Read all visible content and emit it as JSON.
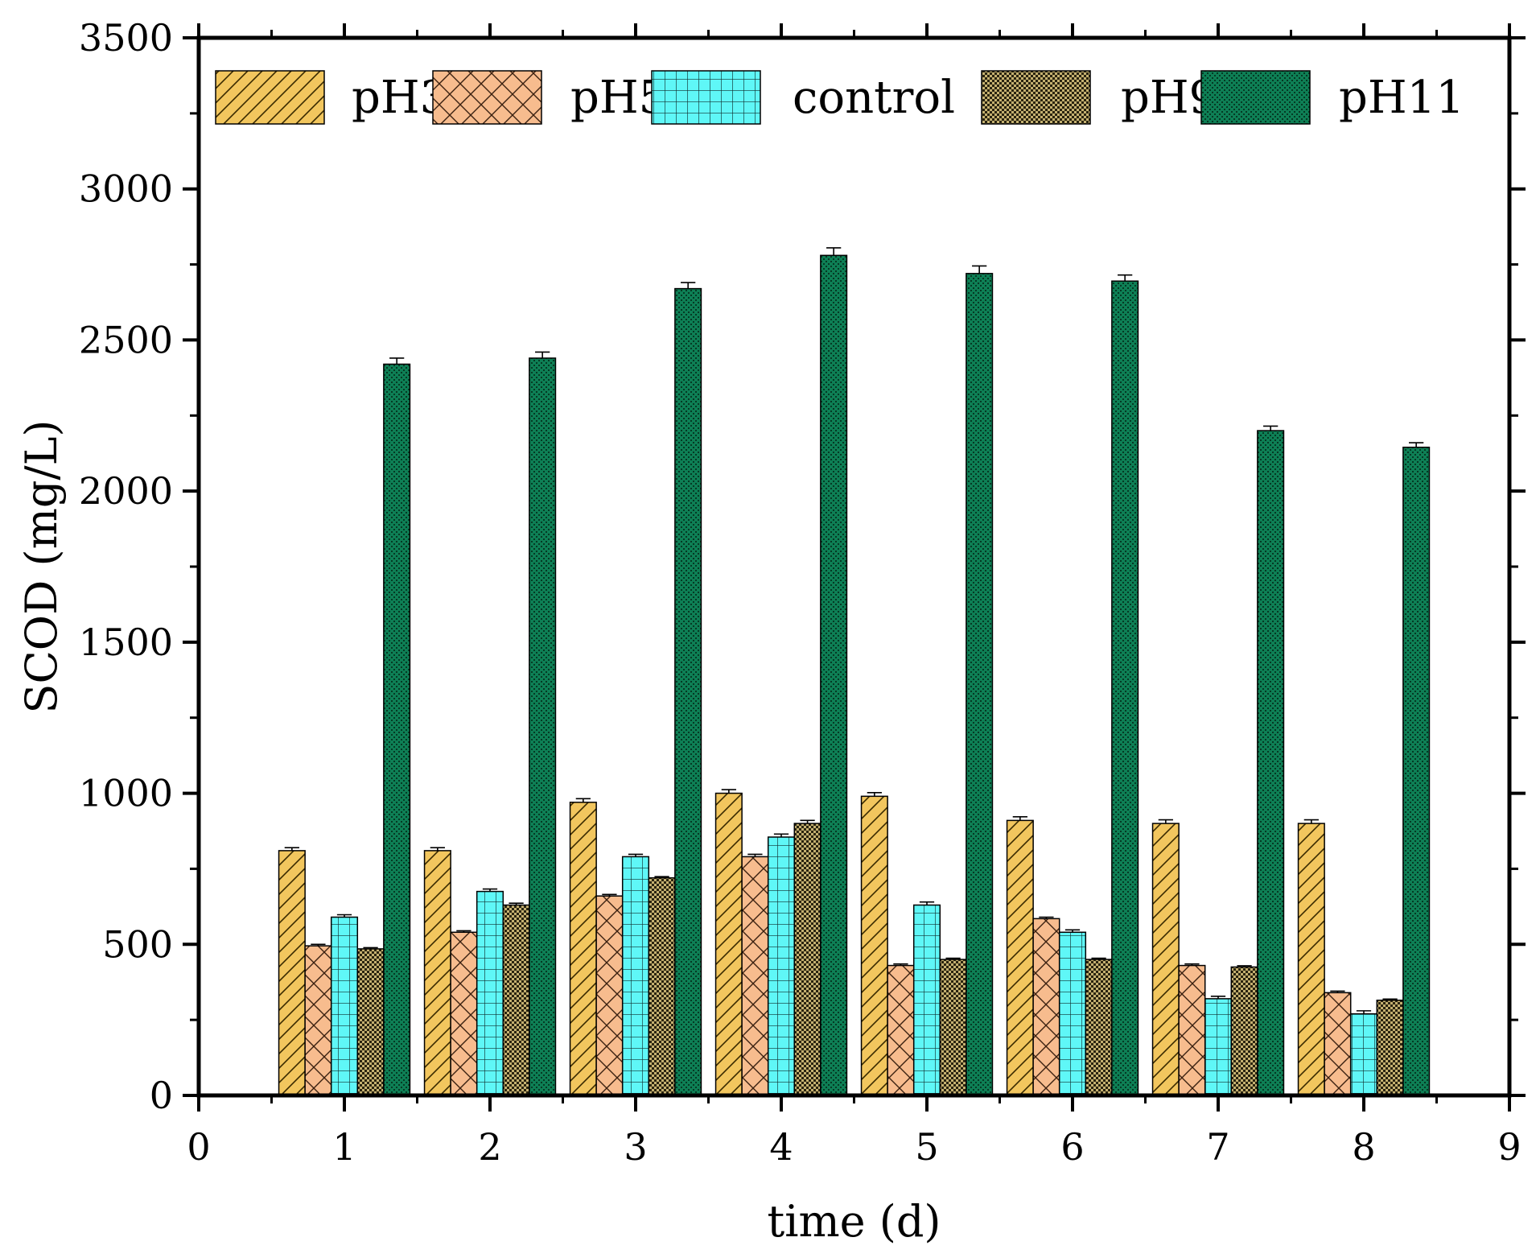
{
  "chart_data": {
    "type": "bar",
    "title": "",
    "xlabel": "time (d)",
    "ylabel": "SCOD (mg/L)",
    "xlim": [
      0,
      9
    ],
    "ylim": [
      0,
      3500
    ],
    "xticks": [
      "0",
      "1",
      "2",
      "3",
      "4",
      "5",
      "6",
      "7",
      "8",
      "9"
    ],
    "yticks": [
      "0",
      "500",
      "1000",
      "1500",
      "2000",
      "2500",
      "3000",
      "3500"
    ],
    "categories": [
      "1",
      "2",
      "3",
      "4",
      "5",
      "6",
      "7",
      "8"
    ],
    "legend_position": "top",
    "grid": false,
    "series": [
      {
        "name": "pH3",
        "color": "#F2C65E",
        "pattern": "diagonal-hatch",
        "values": [
          810,
          810,
          970,
          1000,
          990,
          910,
          900,
          900
        ],
        "errors": [
          10,
          10,
          12,
          12,
          12,
          12,
          12,
          12
        ]
      },
      {
        "name": "pH5",
        "color": "#F7BC8E",
        "pattern": "crosshatch",
        "values": [
          495,
          540,
          660,
          790,
          430,
          585,
          430,
          340
        ],
        "errors": [
          5,
          5,
          5,
          8,
          5,
          5,
          5,
          5
        ]
      },
      {
        "name": "control",
        "color": "#5FF7F7",
        "pattern": "grid",
        "values": [
          590,
          675,
          790,
          855,
          630,
          540,
          320,
          270
        ],
        "errors": [
          8,
          8,
          8,
          10,
          10,
          8,
          8,
          10
        ]
      },
      {
        "name": "pH9",
        "color": "#8A7A55",
        "pattern": "dense-dots",
        "values": [
          485,
          630,
          720,
          900,
          450,
          450,
          425,
          315
        ],
        "errors": [
          4,
          6,
          4,
          10,
          4,
          4,
          4,
          4
        ]
      },
      {
        "name": "pH11",
        "color": "#0E7F55",
        "pattern": "fine-dots",
        "values": [
          2420,
          2440,
          2670,
          2780,
          2720,
          2695,
          2200,
          2145
        ],
        "errors": [
          20,
          20,
          20,
          25,
          25,
          20,
          15,
          15
        ]
      }
    ]
  }
}
